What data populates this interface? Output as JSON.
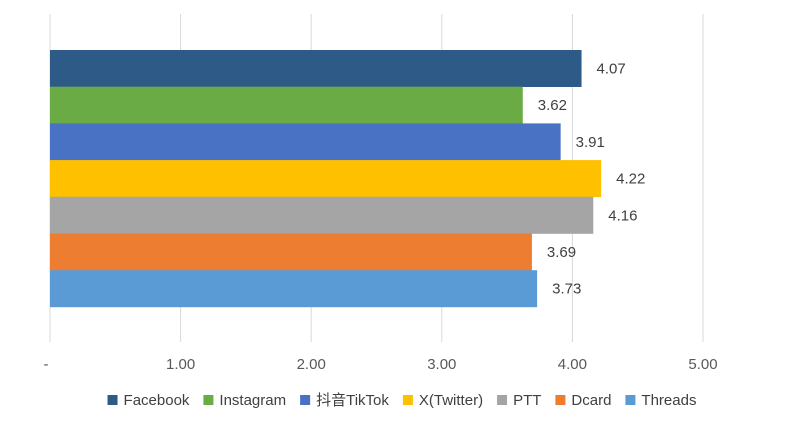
{
  "chart_data": {
    "type": "bar",
    "orientation": "horizontal",
    "categories": [
      "Facebook",
      "Instagram",
      "抖音TikTok",
      "X(Twitter)",
      "PTT",
      "Dcard",
      "Threads"
    ],
    "values": [
      4.07,
      3.62,
      3.91,
      4.22,
      4.16,
      3.69,
      3.73
    ],
    "value_labels": [
      "4.07",
      "3.62",
      "3.91",
      "4.22",
      "4.16",
      "3.69",
      "3.73"
    ],
    "colors": [
      "#2e5a88",
      "#6aab46",
      "#4a72c4",
      "#ffc000",
      "#a5a5a5",
      "#ed7d31",
      "#5b9bd5"
    ],
    "xlim": [
      0,
      5
    ],
    "x_ticks": [
      0,
      1,
      2,
      3,
      4,
      5
    ],
    "x_tick_labels": [
      "-",
      "1.00",
      "2.00",
      "3.00",
      "4.00",
      "5.00"
    ],
    "grid": true,
    "legend_position": "bottom",
    "title": "",
    "xlabel": "",
    "ylabel": ""
  }
}
